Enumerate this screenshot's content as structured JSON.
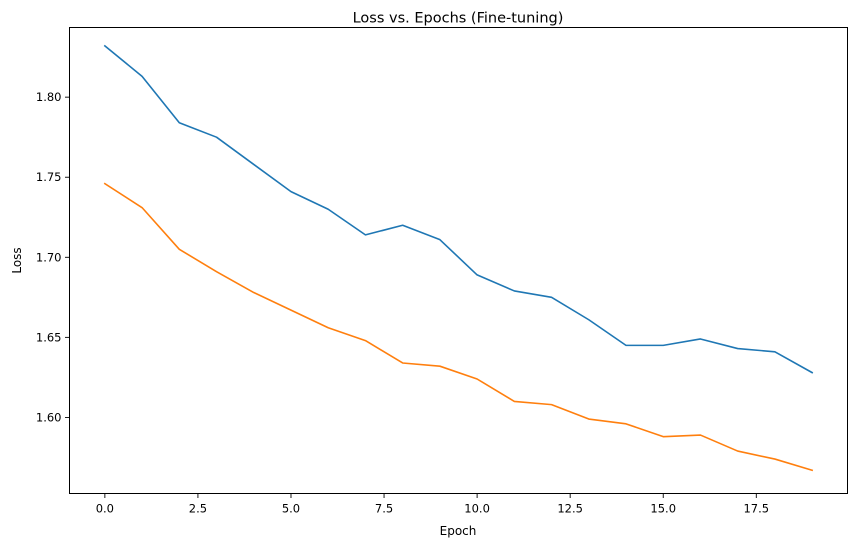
{
  "chart_data": {
    "type": "line",
    "title": "Loss vs. Epochs (Fine-tuning)",
    "xlabel": "Epoch",
    "ylabel": "Loss",
    "xlim": [
      -0.95,
      19.95
    ],
    "ylim": [
      1.5525,
      1.8435
    ],
    "x_ticks": [
      0,
      2.5,
      5,
      7.5,
      10,
      12.5,
      15,
      17.5
    ],
    "x_tick_labels": [
      "0.0",
      "2.5",
      "5.0",
      "7.5",
      "10.0",
      "12.5",
      "15.0",
      "17.5"
    ],
    "y_ticks": [
      1.6,
      1.65,
      1.7,
      1.75,
      1.8
    ],
    "y_tick_labels": [
      "1.60",
      "1.65",
      "1.70",
      "1.75",
      "1.80"
    ],
    "grid": false,
    "legend": "none",
    "x": [
      0,
      1,
      2,
      3,
      4,
      5,
      6,
      7,
      8,
      9,
      10,
      11,
      12,
      13,
      14,
      15,
      16,
      17,
      18,
      19
    ],
    "series": [
      {
        "color": "#1f77b4",
        "values": [
          1.832,
          1.813,
          1.784,
          1.775,
          1.758,
          1.741,
          1.73,
          1.714,
          1.72,
          1.711,
          1.689,
          1.679,
          1.675,
          1.661,
          1.645,
          1.645,
          1.649,
          1.643,
          1.641,
          1.628
        ]
      },
      {
        "color": "#ff7f0e",
        "values": [
          1.746,
          1.731,
          1.705,
          1.691,
          1.678,
          1.667,
          1.656,
          1.648,
          1.634,
          1.632,
          1.624,
          1.61,
          1.608,
          1.599,
          1.596,
          1.588,
          1.589,
          1.579,
          1.574,
          1.567
        ]
      }
    ]
  }
}
